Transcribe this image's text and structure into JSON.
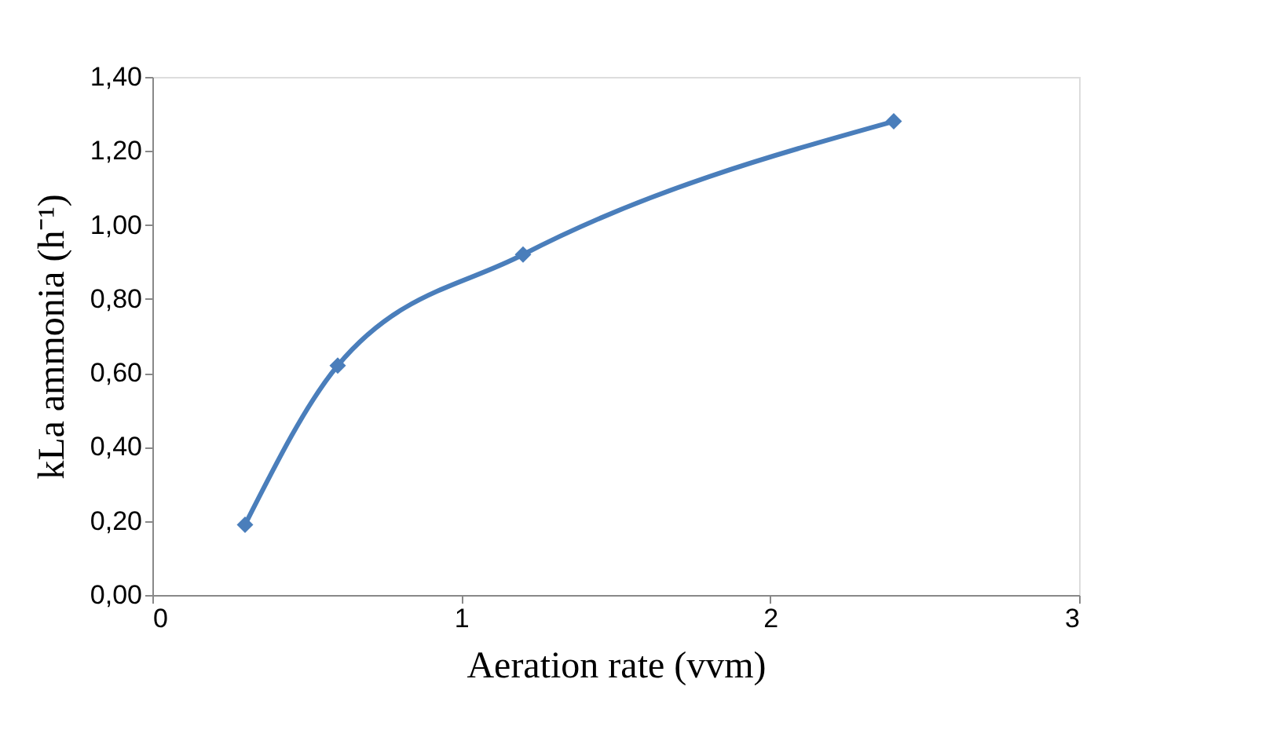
{
  "chart_data": {
    "type": "line",
    "xlabel": "Aeration rate (vvm)",
    "ylabel": "kLa ammonia (h⁻¹)",
    "x": [
      0.3,
      0.6,
      1.2,
      2.4
    ],
    "series": [
      {
        "color": "#4a7ebb",
        "values": [
          0.19,
          0.62,
          0.92,
          1.28
        ]
      }
    ],
    "xlim": [
      0,
      3
    ],
    "xticks": [
      0,
      1,
      2,
      3
    ],
    "ylim": [
      0,
      1.4
    ],
    "yticks": [
      {
        "value": 0,
        "label": "0,00"
      },
      {
        "value": 0.2,
        "label": "0,20"
      },
      {
        "value": 0.4,
        "label": "0,40"
      },
      {
        "value": 0.6,
        "label": "0,60"
      },
      {
        "value": 0.8,
        "label": "0,80"
      },
      {
        "value": 1.0,
        "label": "1,00"
      },
      {
        "value": 1.2,
        "label": "1,20"
      },
      {
        "value": 1.4,
        "label": "1,40"
      }
    ],
    "marker": "diamond",
    "line_style": "solid",
    "grid": false
  }
}
